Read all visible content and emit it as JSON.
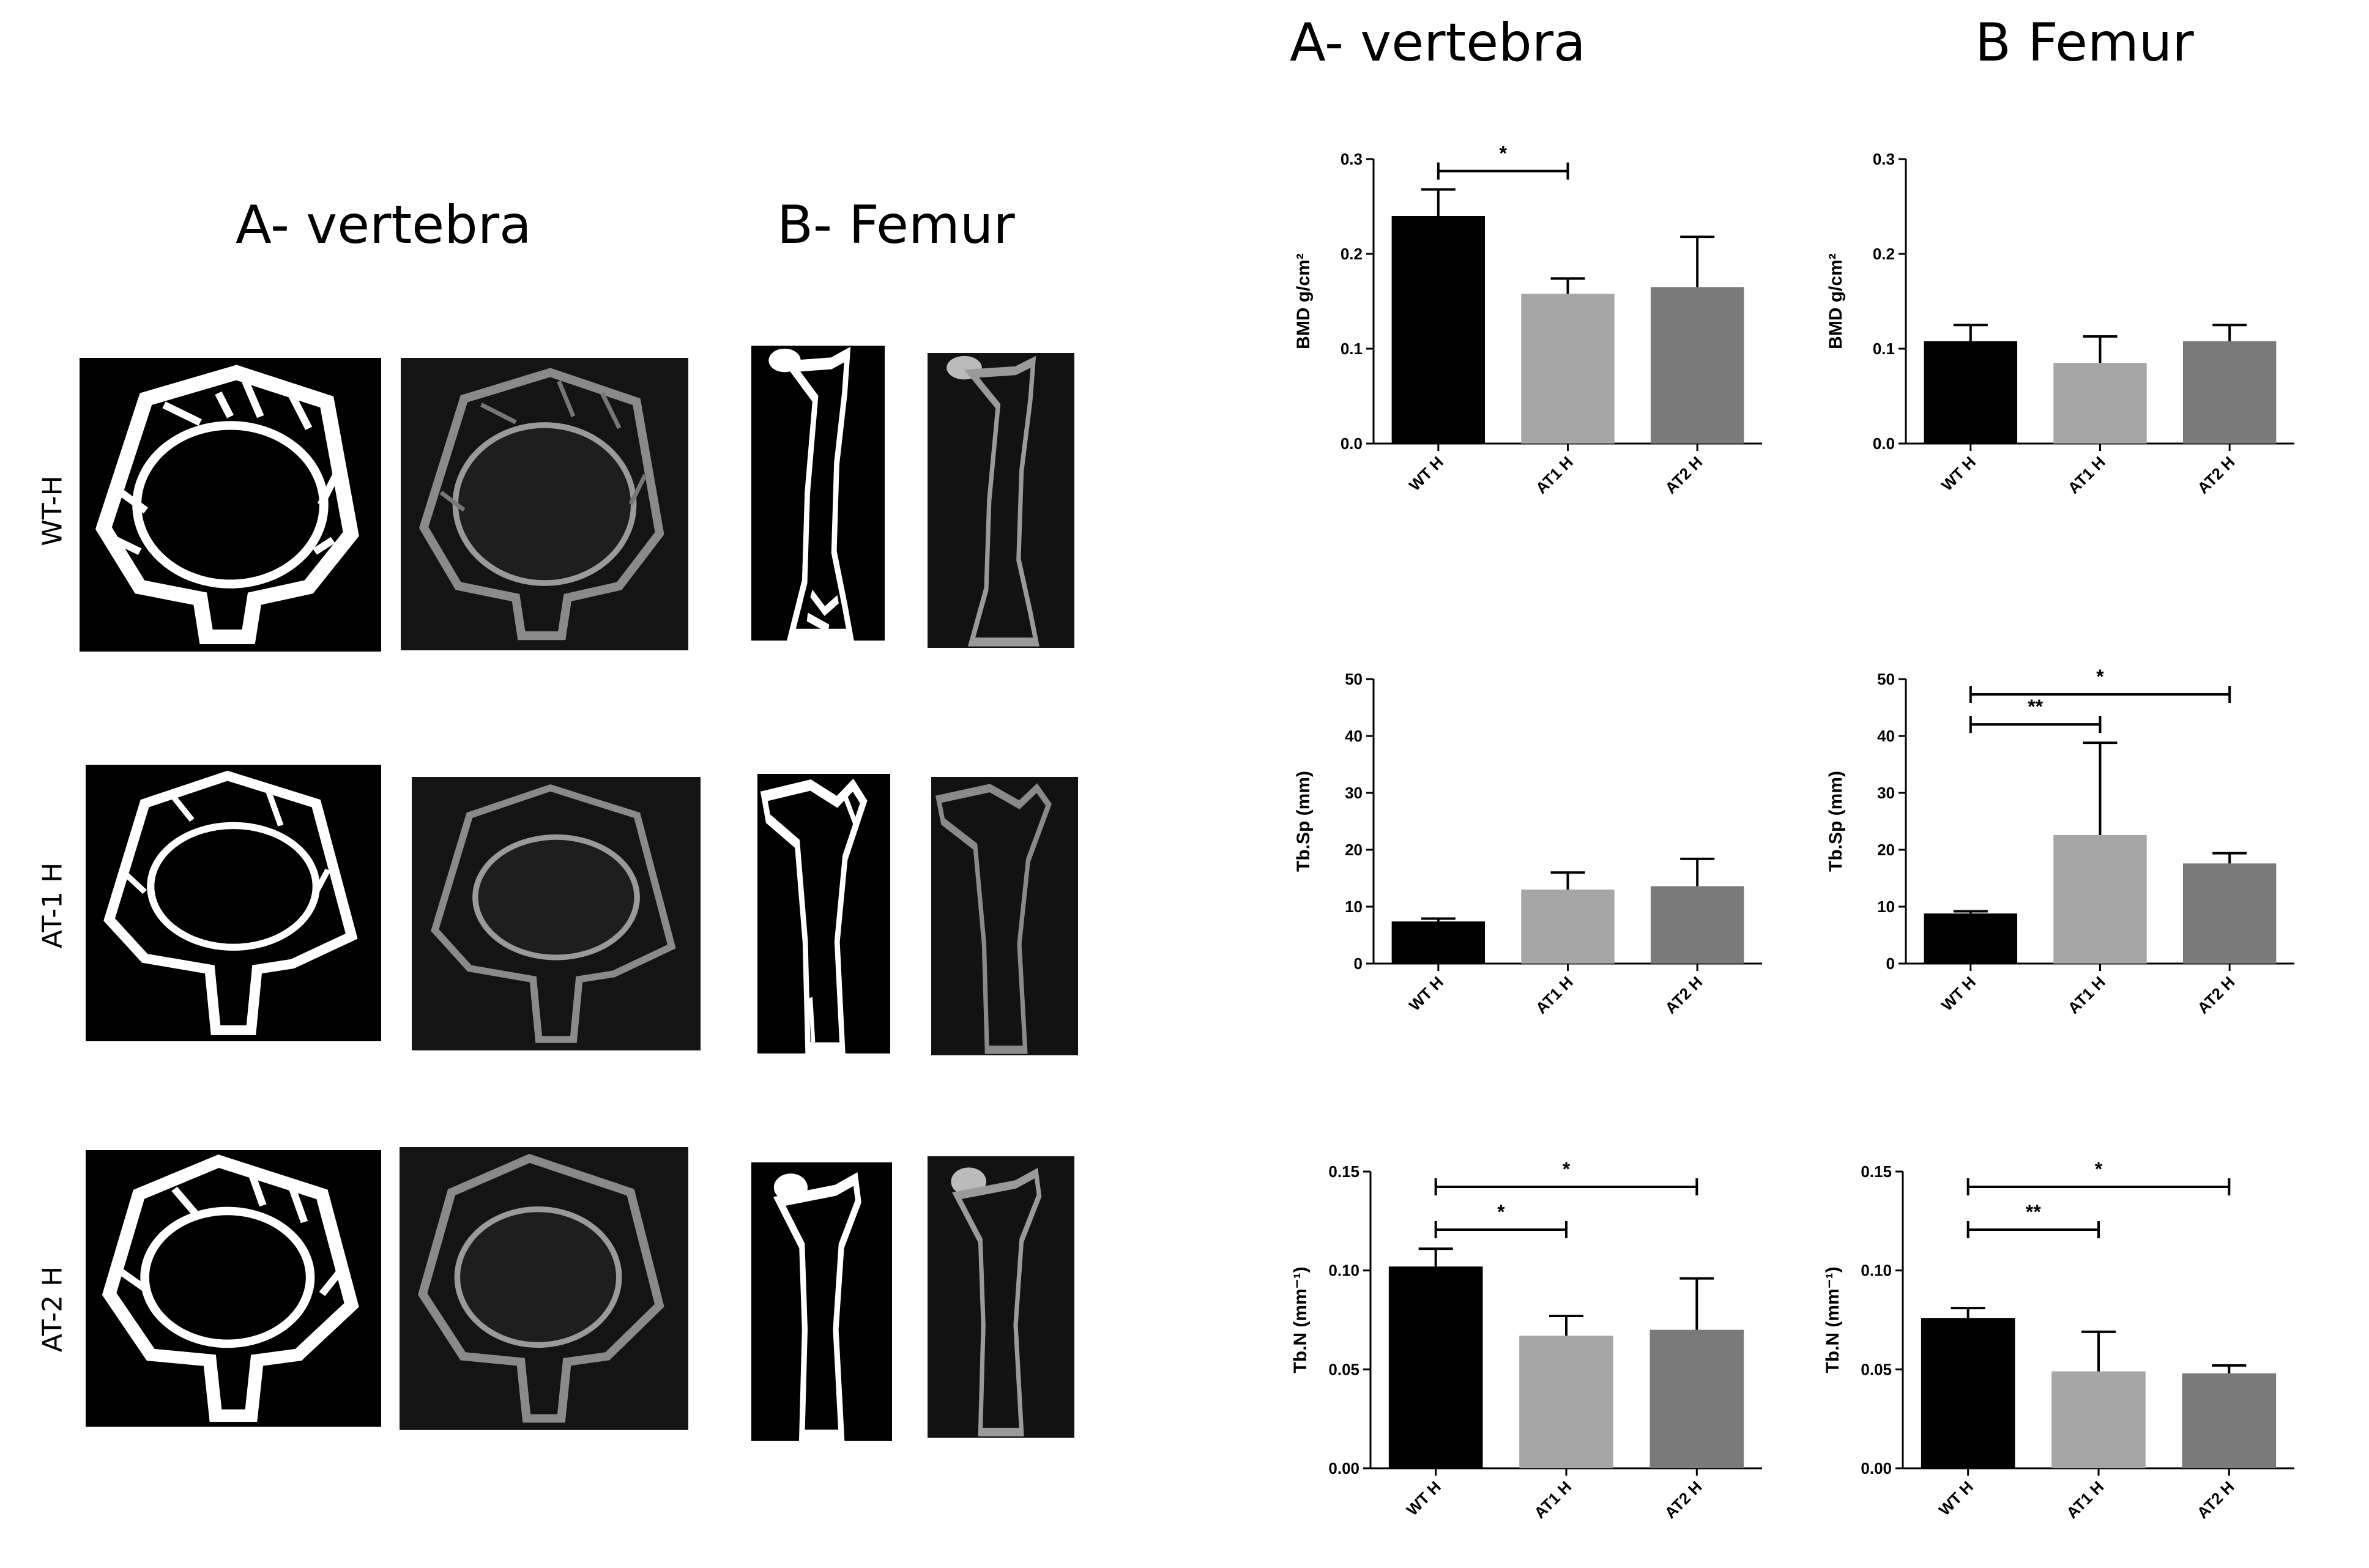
{
  "left_panel": {
    "title_vertebra": "A- vertebra",
    "title_femur": "B- Femur",
    "row_labels": [
      "WT-H",
      "AT-1 H",
      "AT-2 H"
    ]
  },
  "right_panel": {
    "title_vertebra": "A- vertebra",
    "title_femur": "B Femur"
  },
  "colors": {
    "WT H": "#000000",
    "AT1 H": "#a6a6a6",
    "AT2 H": "#7a7a7a"
  },
  "chart_data": [
    {
      "id": "vert-bmd",
      "type": "bar",
      "categories": [
        "WT H",
        "AT1 H",
        "AT2 H"
      ],
      "values": [
        0.24,
        0.158,
        0.165
      ],
      "errors": [
        0.028,
        0.016,
        0.053
      ],
      "ylabel": "BMD g/cm²",
      "ylim": [
        0,
        0.3
      ],
      "yticks": [
        "0.0",
        "0.1",
        "0.2",
        "0.3"
      ],
      "significance": [
        {
          "from": 0,
          "to": 1,
          "label": "*"
        }
      ]
    },
    {
      "id": "fem-bmd",
      "type": "bar",
      "categories": [
        "WT H",
        "AT1 H",
        "AT2 H"
      ],
      "values": [
        0.108,
        0.085,
        0.108
      ],
      "errors": [
        0.017,
        0.028,
        0.017
      ],
      "ylabel": "BMD g/cm²",
      "ylim": [
        0,
        0.3
      ],
      "yticks": [
        "0.0",
        "0.1",
        "0.2",
        "0.3"
      ],
      "significance": []
    },
    {
      "id": "vert-tbsp",
      "type": "bar",
      "categories": [
        "WT H",
        "AT1 H",
        "AT2 H"
      ],
      "values": [
        7.4,
        13.0,
        13.6
      ],
      "errors": [
        0.5,
        3.0,
        4.8
      ],
      "ylabel": "Tb.Sp (mm)",
      "ylim": [
        0,
        50
      ],
      "yticks": [
        "0",
        "10",
        "20",
        "30",
        "40",
        "50"
      ],
      "significance": []
    },
    {
      "id": "fem-tbsp",
      "type": "bar",
      "categories": [
        "WT H",
        "AT1 H",
        "AT2 H"
      ],
      "values": [
        8.8,
        22.6,
        17.6
      ],
      "errors": [
        0.4,
        16.2,
        1.8
      ],
      "ylabel": "Tb.Sp (mm)",
      "ylim": [
        0,
        50
      ],
      "yticks": [
        "0",
        "10",
        "20",
        "30",
        "40",
        "50"
      ],
      "significance": [
        {
          "from": 0,
          "to": 2,
          "label": "*"
        },
        {
          "from": 0,
          "to": 1,
          "label": "**"
        }
      ]
    },
    {
      "id": "vert-tbn",
      "type": "bar",
      "categories": [
        "WT H",
        "AT1 H",
        "AT2 H"
      ],
      "values": [
        0.102,
        0.067,
        0.07
      ],
      "errors": [
        0.009,
        0.01,
        0.026
      ],
      "ylabel": "Tb.N (mm⁻¹)",
      "ylim": [
        0,
        0.15
      ],
      "yticks": [
        "0.00",
        "0.05",
        "0.10",
        "0.15"
      ],
      "significance": [
        {
          "from": 0,
          "to": 2,
          "label": "*"
        },
        {
          "from": 0,
          "to": 1,
          "label": "*"
        }
      ]
    },
    {
      "id": "fem-tbn",
      "type": "bar",
      "categories": [
        "WT H",
        "AT1 H",
        "AT2 H"
      ],
      "values": [
        0.076,
        0.049,
        0.048
      ],
      "errors": [
        0.005,
        0.02,
        0.004
      ],
      "ylabel": "Tb.N (mm⁻¹)",
      "ylim": [
        0,
        0.15
      ],
      "yticks": [
        "0.00",
        "0.05",
        "0.10",
        "0.15"
      ],
      "significance": [
        {
          "from": 0,
          "to": 2,
          "label": "*"
        },
        {
          "from": 0,
          "to": 1,
          "label": "**"
        }
      ]
    }
  ]
}
